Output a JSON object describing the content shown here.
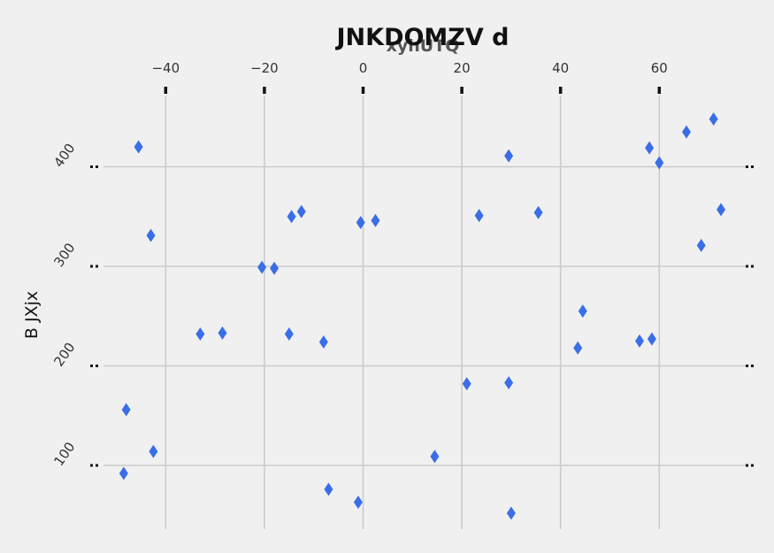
{
  "chart_data": {
    "type": "scatter",
    "title": "JNKDOMZV d",
    "xlabel": "xyhUTQ",
    "ylabel": "B JXjx",
    "xlim": [
      -55,
      78
    ],
    "ylim": [
      40,
      462
    ],
    "x_ticks": [
      -40,
      -20,
      0,
      20,
      40,
      60
    ],
    "y_ticks": [
      100,
      200,
      300,
      400
    ],
    "x_axis_position": "top",
    "grid": true,
    "marker": "diamond",
    "color": "#3a6ee8",
    "background": "#f0f0f0",
    "points": [
      {
        "x": -45.5,
        "y": 420
      },
      {
        "x": -43,
        "y": 331
      },
      {
        "x": -48,
        "y": 156
      },
      {
        "x": -42.5,
        "y": 114
      },
      {
        "x": -48.5,
        "y": 92
      },
      {
        "x": -33,
        "y": 232
      },
      {
        "x": -28.5,
        "y": 233
      },
      {
        "x": -20.5,
        "y": 299
      },
      {
        "x": -18,
        "y": 298
      },
      {
        "x": -14.5,
        "y": 350
      },
      {
        "x": -12.5,
        "y": 355
      },
      {
        "x": -15,
        "y": 232
      },
      {
        "x": -8,
        "y": 224
      },
      {
        "x": -7,
        "y": 76
      },
      {
        "x": -1,
        "y": 63
      },
      {
        "x": -0.5,
        "y": 344
      },
      {
        "x": 2.5,
        "y": 346
      },
      {
        "x": 14.5,
        "y": 109
      },
      {
        "x": 21,
        "y": 182
      },
      {
        "x": 23.5,
        "y": 351
      },
      {
        "x": 29.5,
        "y": 411
      },
      {
        "x": 29.5,
        "y": 183
      },
      {
        "x": 30,
        "y": 52
      },
      {
        "x": 35.5,
        "y": 354
      },
      {
        "x": 43.5,
        "y": 218
      },
      {
        "x": 44.5,
        "y": 255
      },
      {
        "x": 56,
        "y": 225
      },
      {
        "x": 58.5,
        "y": 227
      },
      {
        "x": 58,
        "y": 419
      },
      {
        "x": 60,
        "y": 404
      },
      {
        "x": 65.5,
        "y": 435
      },
      {
        "x": 68.5,
        "y": 321
      },
      {
        "x": 71,
        "y": 448
      },
      {
        "x": 72.5,
        "y": 357
      }
    ]
  }
}
